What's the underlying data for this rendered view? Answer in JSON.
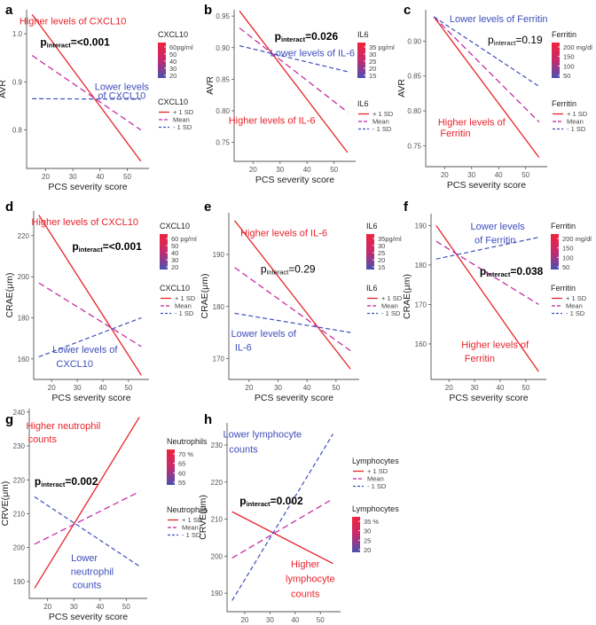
{
  "figure": {
    "colors": {
      "high": "#e8242b",
      "mean": "#c0209f",
      "low": "#3f4fbb",
      "axis": "#555555",
      "text": "#333333",
      "grad_top": "#f0233c",
      "grad_mid": "#c42a6e",
      "grad_bottom": "#4a4fb2"
    }
  },
  "chart_data": [
    {
      "id": "a",
      "type": "line",
      "letter": "a",
      "xlabel": "PCS severity score",
      "ylabel": "AVR",
      "xlim": [
        13,
        58
      ],
      "ylim": [
        0.72,
        1.05
      ],
      "xticks": [
        20,
        30,
        40,
        50
      ],
      "yticks": [
        0.8,
        0.9,
        1.0
      ],
      "xtick_labels": [
        "20",
        "30",
        "40",
        "50"
      ],
      "ytick_labels": [
        "0.8",
        "0.9",
        "1.0"
      ],
      "series": [
        {
          "name": "+ 1 SD",
          "style": "high",
          "x": [
            15,
            55
          ],
          "y": [
            1.04,
            0.735
          ]
        },
        {
          "name": "Mean",
          "style": "mean",
          "x": [
            15,
            55
          ],
          "y": [
            0.955,
            0.8
          ]
        },
        {
          "name": "- 1 SD",
          "style": "low",
          "x": [
            15,
            55
          ],
          "y": [
            0.865,
            0.864
          ]
        }
      ],
      "annotations": [
        {
          "text": "Higher levels of CXCL10",
          "style": "high",
          "x": 30,
          "y": 1.02,
          "anchor": "middle"
        },
        {
          "text": "Lower levels",
          "style": "low",
          "x": 48,
          "y": 0.883,
          "anchor": "middle"
        },
        {
          "text": "of CXCL10",
          "style": "low",
          "x": 48,
          "y": 0.865,
          "anchor": "middle"
        }
      ],
      "p": {
        "main": "p",
        "sub": "interact",
        "value": "=<0.001",
        "bold": true,
        "x": 18,
        "y": 0.975
      },
      "color_legend": {
        "title": "CXCL10",
        "unit_label": "60pg/ml",
        "ticks": [
          "60pg/ml",
          "50",
          "40",
          "30",
          "20"
        ]
      },
      "line_legend": {
        "title": "CXCL10",
        "items": [
          "+ 1 SD",
          "Mean",
          "- 1 SD"
        ]
      }
    },
    {
      "id": "b",
      "type": "line",
      "letter": "b",
      "xlabel": "PCS severity score",
      "ylabel": "AVR",
      "xlim": [
        13,
        58
      ],
      "ylim": [
        0.72,
        0.96
      ],
      "xticks": [
        20,
        30,
        40,
        50
      ],
      "yticks": [
        0.75,
        0.8,
        0.85,
        0.9,
        0.95
      ],
      "xtick_labels": [
        "20",
        "30",
        "40",
        "50"
      ],
      "ytick_labels": [
        "0.75",
        "0.80",
        "0.85",
        "0.90",
        "0.95"
      ],
      "series": [
        {
          "name": "+ 1 SD",
          "style": "high",
          "x": [
            15,
            55
          ],
          "y": [
            0.958,
            0.734
          ]
        },
        {
          "name": "Mean",
          "style": "mean",
          "x": [
            15,
            55
          ],
          "y": [
            0.931,
            0.798
          ]
        },
        {
          "name": "- 1 SD",
          "style": "low",
          "x": [
            15,
            55
          ],
          "y": [
            0.903,
            0.862
          ]
        }
      ],
      "annotations": [
        {
          "text": "Lower levels of IL-6",
          "style": "low",
          "x": 42,
          "y": 0.886,
          "anchor": "middle"
        },
        {
          "text": "Higher levels of IL-6",
          "style": "high",
          "x": 27,
          "y": 0.78,
          "anchor": "middle"
        }
      ],
      "p": {
        "main": "p",
        "sub": "interact",
        "value": "=0.026",
        "bold": true,
        "x": 28,
        "y": 0.912
      },
      "color_legend": {
        "title": "IL6",
        "ticks": [
          "35 pg/ml",
          "30",
          "25",
          "20",
          "15"
        ]
      },
      "line_legend": {
        "title": "IL6",
        "items": [
          "+ 1 SD",
          "Mean",
          "- 1 SD"
        ]
      }
    },
    {
      "id": "c",
      "type": "line",
      "letter": "c",
      "xlabel": "PCS severity score",
      "ylabel": "AVR",
      "xlim": [
        13,
        58
      ],
      "ylim": [
        0.72,
        0.945
      ],
      "xticks": [
        20,
        30,
        40,
        50
      ],
      "yticks": [
        0.75,
        0.8,
        0.85,
        0.9
      ],
      "xtick_labels": [
        "20",
        "30",
        "40",
        "50"
      ],
      "ytick_labels": [
        "0.75",
        "0.80",
        "0.85",
        "0.90"
      ],
      "series": [
        {
          "name": "+ 1 SD",
          "style": "high",
          "x": [
            16,
            55
          ],
          "y": [
            0.935,
            0.733
          ]
        },
        {
          "name": "Mean",
          "style": "mean",
          "x": [
            16,
            55
          ],
          "y": [
            0.935,
            0.784
          ]
        },
        {
          "name": "- 1 SD",
          "style": "low",
          "x": [
            16,
            55
          ],
          "y": [
            0.935,
            0.835
          ]
        }
      ],
      "annotations": [
        {
          "text": "Lower levels of Ferritin",
          "style": "low",
          "x": 40,
          "y": 0.927,
          "anchor": "middle"
        },
        {
          "text": "Higher levels of",
          "style": "high",
          "x": 30,
          "y": 0.779,
          "anchor": "middle"
        },
        {
          "text": "Ferritin",
          "style": "high",
          "x": 24,
          "y": 0.763,
          "anchor": "middle"
        }
      ],
      "p": {
        "main": "p",
        "sub": "interact",
        "value": "=0.19",
        "bold": false,
        "x": 36,
        "y": 0.897
      },
      "color_legend": {
        "title": "Ferritin",
        "ticks": [
          "200 mg/dl",
          "150",
          "100",
          "50"
        ]
      },
      "line_legend": {
        "title": "Ferritin",
        "items": [
          "+ 1 SD",
          "Mean",
          "- 1 SD"
        ]
      }
    },
    {
      "id": "d",
      "type": "line",
      "letter": "d",
      "xlabel": "PCS severity score",
      "ylabel": "CRAE(μm)",
      "xlim": [
        13,
        58
      ],
      "ylim": [
        150,
        232
      ],
      "xticks": [
        20,
        30,
        40,
        50
      ],
      "yticks": [
        160,
        180,
        200,
        220
      ],
      "xtick_labels": [
        "20",
        "30",
        "40",
        "50"
      ],
      "ytick_labels": [
        "160",
        "180",
        "200",
        "220"
      ],
      "series": [
        {
          "name": "+ 1 SD",
          "style": "high",
          "x": [
            15,
            55
          ],
          "y": [
            230,
            152
          ]
        },
        {
          "name": "Mean",
          "style": "mean",
          "x": [
            15,
            55
          ],
          "y": [
            197,
            166
          ]
        },
        {
          "name": "- 1 SD",
          "style": "low",
          "x": [
            15,
            55
          ],
          "y": [
            161,
            180
          ]
        }
      ],
      "annotations": [
        {
          "text": "Higher levels of CXCL10",
          "style": "high",
          "x": 33,
          "y": 225,
          "anchor": "middle"
        },
        {
          "text": "Lower levels of",
          "style": "low",
          "x": 33,
          "y": 163,
          "anchor": "middle"
        },
        {
          "text": "CXCL10",
          "style": "low",
          "x": 29,
          "y": 156,
          "anchor": "middle"
        }
      ],
      "p": {
        "main": "p",
        "sub": "interact",
        "value": "=<0.001",
        "bold": true,
        "x": 28,
        "y": 213
      },
      "color_legend": {
        "title": "CXCL10",
        "ticks": [
          "60 pg/ml",
          "50",
          "40",
          "30",
          "20"
        ]
      },
      "line_legend": {
        "title": "CXCL10",
        "items": [
          "+ 1 SD",
          "Mean",
          "- 1 SD"
        ]
      }
    },
    {
      "id": "e",
      "type": "line",
      "letter": "e",
      "xlabel": "PCS severity score",
      "ylabel": "CRAE(μm)",
      "xlim": [
        13,
        58
      ],
      "ylim": [
        166,
        198
      ],
      "xticks": [
        20,
        30,
        40,
        50
      ],
      "yticks": [
        170,
        180,
        190
      ],
      "xtick_labels": [
        "20",
        "30",
        "40",
        "50"
      ],
      "ytick_labels": [
        "170",
        "180",
        "190"
      ],
      "series": [
        {
          "name": "+ 1 SD",
          "style": "high",
          "x": [
            15,
            55
          ],
          "y": [
            196.5,
            168
          ]
        },
        {
          "name": "Mean",
          "style": "mean",
          "x": [
            15,
            55
          ],
          "y": [
            187.5,
            171.5
          ]
        },
        {
          "name": "- 1 SD",
          "style": "low",
          "x": [
            15,
            55
          ],
          "y": [
            178.7,
            175
          ]
        }
      ],
      "annotations": [
        {
          "text": "Higher levels of IL-6",
          "style": "high",
          "x": 32,
          "y": 193.5,
          "anchor": "middle"
        },
        {
          "text": "Lower levels of",
          "style": "low",
          "x": 25,
          "y": 174.2,
          "anchor": "middle"
        },
        {
          "text": "IL-6",
          "style": "low",
          "x": 18,
          "y": 171.5,
          "anchor": "middle"
        }
      ],
      "p": {
        "main": "p",
        "sub": "interact",
        "value": "=0.29",
        "bold": false,
        "x": 24,
        "y": 186.5
      },
      "color_legend": {
        "title": "IL6",
        "ticks": [
          "35pg/ml",
          "30",
          "25",
          "20",
          "15"
        ]
      },
      "line_legend": {
        "title": "IL6",
        "items": [
          "+ 1 SD",
          "Mean",
          "- 1 SD"
        ]
      }
    },
    {
      "id": "f",
      "type": "line",
      "letter": "f",
      "xlabel": "PCS severity score",
      "ylabel": "CRAE(μm)",
      "xlim": [
        13,
        58
      ],
      "ylim": [
        151,
        193
      ],
      "xticks": [
        20,
        30,
        40,
        50
      ],
      "yticks": [
        160,
        170,
        180,
        190
      ],
      "xtick_labels": [
        "20",
        "30",
        "40",
        "50"
      ],
      "ytick_labels": [
        "160",
        "170",
        "180",
        "190"
      ],
      "series": [
        {
          "name": "+ 1 SD",
          "style": "high",
          "x": [
            15,
            55
          ],
          "y": [
            190,
            153
          ]
        },
        {
          "name": "Mean",
          "style": "mean",
          "x": [
            15,
            55
          ],
          "y": [
            186,
            170
          ]
        },
        {
          "name": "- 1 SD",
          "style": "low",
          "x": [
            15,
            55
          ],
          "y": [
            181.5,
            187
          ]
        }
      ],
      "annotations": [
        {
          "text": "Lower levels",
          "style": "low",
          "x": 39,
          "y": 189,
          "anchor": "middle"
        },
        {
          "text": "of Ferritin",
          "style": "low",
          "x": 38,
          "y": 185.5,
          "anchor": "middle"
        },
        {
          "text": "Higher levels of",
          "style": "high",
          "x": 38,
          "y": 159,
          "anchor": "middle"
        },
        {
          "text": "Ferritin",
          "style": "high",
          "x": 32,
          "y": 155.5,
          "anchor": "middle"
        }
      ],
      "p": {
        "main": "p",
        "sub": "interact",
        "value": "=0.038",
        "bold": true,
        "x": 32,
        "y": 177.5
      },
      "color_legend": {
        "title": "Ferritin",
        "ticks": [
          "200 mg/dl",
          "150",
          "100",
          "50"
        ]
      },
      "line_legend": {
        "title": "Ferritin",
        "items": [
          "+ 1 SD",
          "Mean",
          "- 1 SD"
        ]
      }
    },
    {
      "id": "g",
      "type": "line",
      "letter": "g",
      "xlabel": "PCS severity score",
      "ylabel": "CRVE(μm)",
      "xlim": [
        13,
        58
      ],
      "ylim": [
        185,
        241
      ],
      "xticks": [
        20,
        30,
        40,
        50
      ],
      "yticks": [
        190,
        200,
        210,
        220,
        230,
        240
      ],
      "xtick_labels": [
        "20",
        "30",
        "40",
        "50"
      ],
      "ytick_labels": [
        "190",
        "200",
        "210",
        "220",
        "230",
        "240"
      ],
      "series": [
        {
          "name": "+ 1 SD",
          "style": "high",
          "x": [
            15,
            55
          ],
          "y": [
            188,
            238.5
          ]
        },
        {
          "name": "Mean",
          "style": "mean",
          "x": [
            15,
            55
          ],
          "y": [
            201,
            216.5
          ]
        },
        {
          "name": "- 1 SD",
          "style": "low",
          "x": [
            15,
            55
          ],
          "y": [
            215,
            194.5
          ]
        }
      ],
      "annotations": [
        {
          "text": "Higher neutrophil",
          "style": "high",
          "x": 26,
          "y": 235,
          "anchor": "middle"
        },
        {
          "text": "counts",
          "style": "high",
          "x": 18,
          "y": 231,
          "anchor": "middle"
        },
        {
          "text": "Lower",
          "style": "low",
          "x": 34,
          "y": 196,
          "anchor": "middle"
        },
        {
          "text": "neutrophil",
          "style": "low",
          "x": 37,
          "y": 192,
          "anchor": "middle"
        },
        {
          "text": "counts",
          "style": "low",
          "x": 35,
          "y": 188,
          "anchor": "middle"
        }
      ],
      "p": {
        "main": "p",
        "sub": "interact",
        "value": "=0.002",
        "bold": true,
        "x": 15,
        "y": 218.5
      },
      "color_legend": {
        "title": "Neutrophils",
        "ticks": [
          "70 %",
          "65",
          "60",
          "55"
        ]
      },
      "line_legend": {
        "title": "Neutrophils",
        "items": [
          "+ 1 SD",
          "Mean",
          "- 1 SD"
        ]
      }
    },
    {
      "id": "h",
      "type": "line",
      "letter": "h",
      "xlabel": "PCS severity score",
      "ylabel": "CRVE(μm)",
      "xlim": [
        13,
        58
      ],
      "ylim": [
        185,
        236
      ],
      "xticks": [
        20,
        30,
        40,
        50
      ],
      "yticks": [
        190,
        200,
        210,
        220,
        230
      ],
      "xtick_labels": [
        "20",
        "30",
        "40",
        "50"
      ],
      "ytick_labels": [
        "190",
        "200",
        "210",
        "220",
        "230"
      ],
      "series": [
        {
          "name": "+ 1 SD",
          "style": "high",
          "x": [
            15,
            55
          ],
          "y": [
            212,
            198
          ]
        },
        {
          "name": "Mean",
          "style": "mean",
          "x": [
            15,
            55
          ],
          "y": [
            199.5,
            215.5
          ]
        },
        {
          "name": "- 1 SD",
          "style": "low",
          "x": [
            15,
            55
          ],
          "y": [
            188,
            233
          ]
        }
      ],
      "annotations": [
        {
          "text": "Lower lymphocyte",
          "style": "low",
          "x": 27,
          "y": 232,
          "anchor": "middle"
        },
        {
          "text": "counts",
          "style": "low",
          "x": 19.5,
          "y": 228,
          "anchor": "middle"
        },
        {
          "text": "Higher",
          "style": "high",
          "x": 44,
          "y": 197,
          "anchor": "middle"
        },
        {
          "text": "lymphocyte",
          "style": "high",
          "x": 46,
          "y": 193,
          "anchor": "middle"
        },
        {
          "text": "counts",
          "style": "high",
          "x": 44,
          "y": 189,
          "anchor": "middle"
        }
      ],
      "p": {
        "main": "p",
        "sub": "interact",
        "value": "=0.002",
        "bold": true,
        "x": 18,
        "y": 214
      },
      "color_legend": {
        "title": "Lymphocytes",
        "ticks": [
          "35 %",
          "30",
          "25",
          "20"
        ]
      },
      "line_legend": {
        "title": "Lymphocytes",
        "items": [
          "+ 1 SD",
          "Mean",
          "- 1 SD"
        ]
      }
    }
  ]
}
